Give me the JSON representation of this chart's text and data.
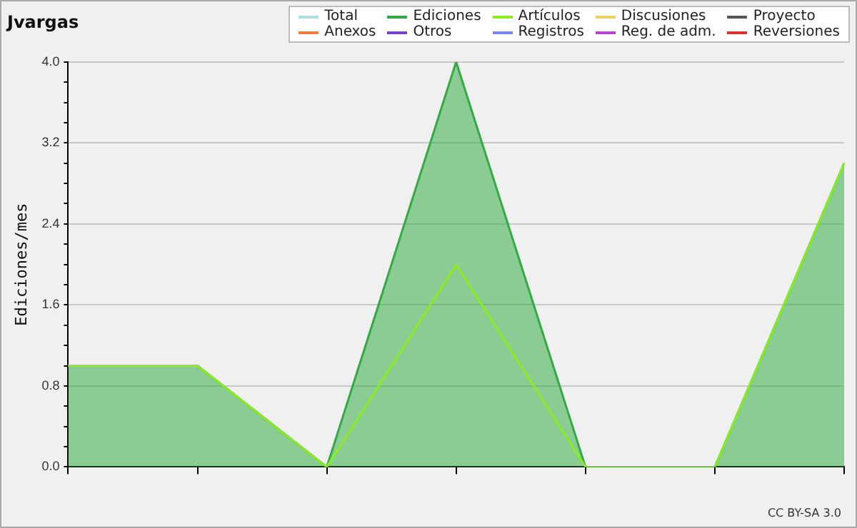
{
  "chart_data": {
    "type": "line",
    "title": "Jvargas",
    "ylabel": "Ediciones/mes",
    "categories": [
      null,
      null,
      null,
      null,
      null,
      null,
      null
    ],
    "series": [
      {
        "name": "Total",
        "color": "#a8e0e0",
        "values": [
          null,
          null,
          null,
          null,
          null,
          null,
          null
        ]
      },
      {
        "name": "Ediciones",
        "type": "area",
        "color": "#33aa44",
        "values": [
          1,
          1,
          0,
          4,
          0,
          0,
          3
        ]
      },
      {
        "name": "Artículos",
        "color": "#88ee22",
        "values": [
          1,
          1,
          0,
          2,
          0,
          0,
          3
        ]
      },
      {
        "name": "Discusiones",
        "color": "#f0d060",
        "values": [
          null,
          null,
          null,
          null,
          null,
          null,
          null
        ]
      },
      {
        "name": "Proyecto",
        "color": "#555555",
        "values": [
          null,
          null,
          null,
          null,
          null,
          null,
          null
        ]
      },
      {
        "name": "Anexos",
        "color": "#f08040",
        "values": [
          null,
          null,
          null,
          null,
          null,
          null,
          null
        ]
      },
      {
        "name": "Otros",
        "color": "#7744cc",
        "values": [
          null,
          null,
          null,
          null,
          null,
          null,
          null
        ]
      },
      {
        "name": "Registros",
        "color": "#7788ee",
        "values": [
          null,
          null,
          null,
          null,
          null,
          null,
          null
        ]
      },
      {
        "name": "Reg. de adm.",
        "color": "#bb44dd",
        "values": [
          null,
          null,
          null,
          null,
          null,
          null,
          null
        ]
      },
      {
        "name": "Reversiones",
        "color": "#dd3333",
        "values": [
          null,
          null,
          null,
          null,
          null,
          null,
          null
        ]
      }
    ],
    "ylim": [
      0,
      4
    ],
    "yticks": [
      {
        "value": 0,
        "label": "0.0"
      },
      {
        "value": 0.2,
        "label": null
      },
      {
        "value": 0.4,
        "label": null
      },
      {
        "value": 0.6,
        "label": null
      },
      {
        "value": 0.8,
        "label": "0.8"
      },
      {
        "value": 1,
        "label": null
      },
      {
        "value": 1.2,
        "label": null
      },
      {
        "value": 1.4,
        "label": null
      },
      {
        "value": 1.6,
        "label": "1.6"
      },
      {
        "value": 1.8,
        "label": null
      },
      {
        "value": 2,
        "label": null
      },
      {
        "value": 2.2,
        "label": null
      },
      {
        "value": 2.4,
        "label": "2.4"
      },
      {
        "value": 2.6,
        "label": null
      },
      {
        "value": 2.8,
        "label": null
      },
      {
        "value": 3,
        "label": null
      },
      {
        "value": 3.2,
        "label": "3.2"
      },
      {
        "value": 3.4,
        "label": null
      },
      {
        "value": 3.6,
        "label": null
      },
      {
        "value": 3.8,
        "label": null
      },
      {
        "value": 4,
        "label": "4.0"
      }
    ],
    "grid": "y",
    "legend": "top right",
    "marker": "none",
    "line_style": "solid",
    "annotations": [
      "CC BY-SA 3.0"
    ]
  }
}
